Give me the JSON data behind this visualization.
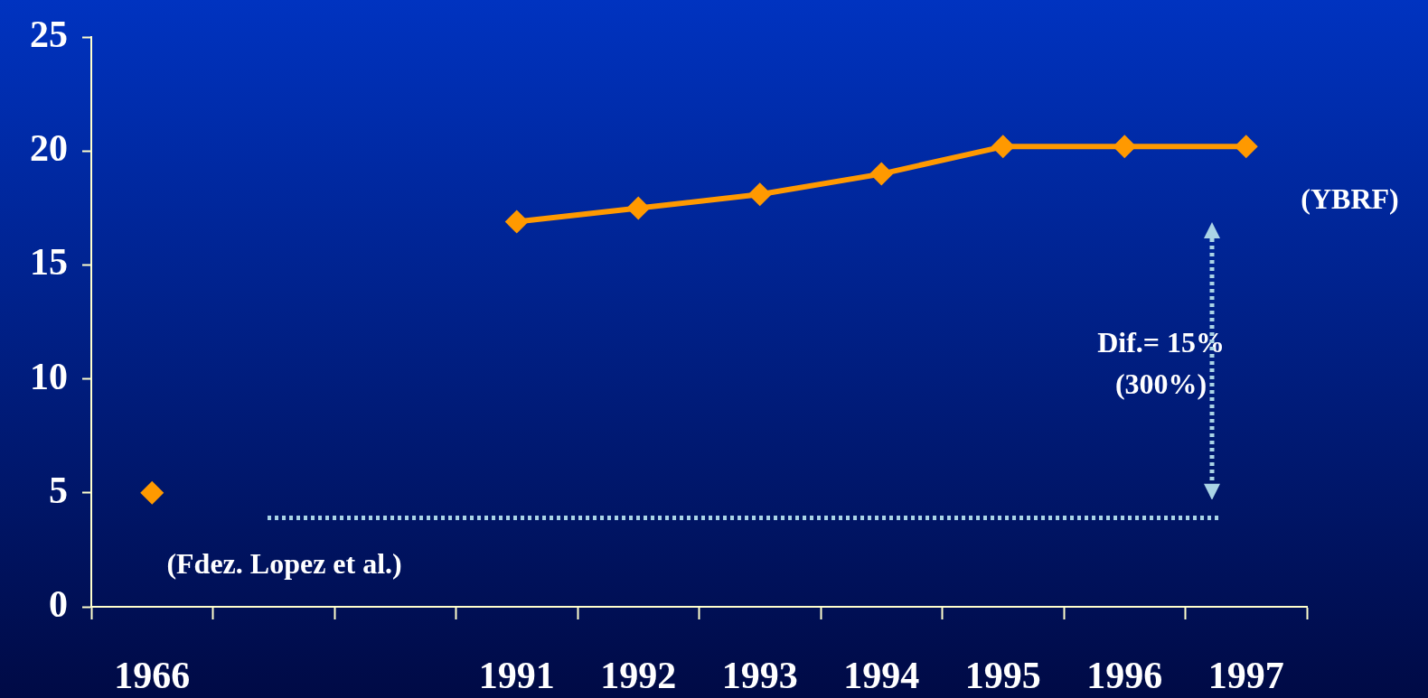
{
  "chart_data": {
    "type": "line",
    "categories": [
      "1966",
      null,
      null,
      "1991",
      "1992",
      "1993",
      "1994",
      "1995",
      "1996",
      "1997"
    ],
    "series": [
      {
        "color": "#ff9900",
        "values": [
          5,
          null,
          null,
          16.9,
          17.5,
          18.1,
          19.0,
          20.2,
          20.2,
          20.2
        ]
      }
    ],
    "ylim": [
      0,
      25
    ],
    "yticks": [
      0,
      5,
      10,
      15,
      20,
      25
    ],
    "marker": "diamond",
    "line_style": "solid",
    "grid": false,
    "legend": false,
    "ref_lines": [
      {
        "axis": "y",
        "value": 3.9,
        "color": "#aad4e6",
        "line_style": "dotted"
      }
    ],
    "annotations": [
      "Dif.= 15%\n(300%)",
      "(YBRF)",
      "(Fdez. Lopez et al.)"
    ]
  }
}
